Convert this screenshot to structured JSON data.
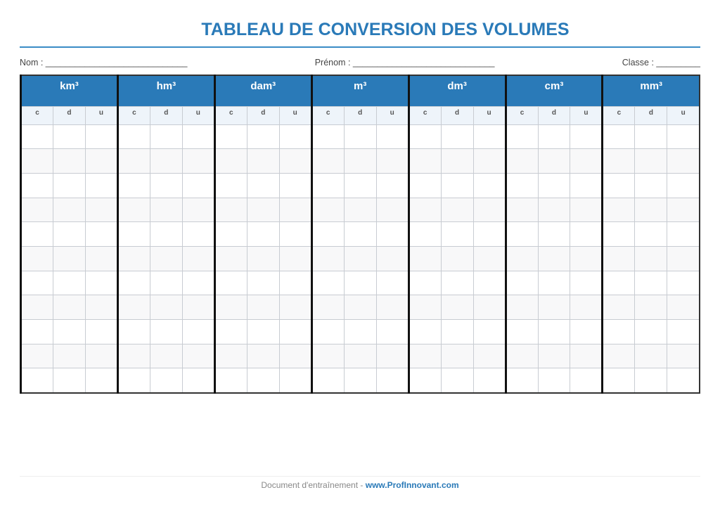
{
  "title": "TABLEAU DE CONVERSION DES VOLUMES",
  "fields": {
    "nom": "Nom : _____________________________",
    "prenom": "Prénom : _____________________________",
    "classe": "Classe : _________"
  },
  "units": [
    "km³",
    "hm³",
    "dam³",
    "m³",
    "dm³",
    "cm³",
    "mm³"
  ],
  "subcolumns": [
    "c",
    "d",
    "u"
  ],
  "footer": {
    "text": "Document d'entraînement - ",
    "link": "www.ProfInnovant.com"
  },
  "colors": {
    "accent": "#2a7ab8",
    "subheader": "#eef4fa"
  }
}
